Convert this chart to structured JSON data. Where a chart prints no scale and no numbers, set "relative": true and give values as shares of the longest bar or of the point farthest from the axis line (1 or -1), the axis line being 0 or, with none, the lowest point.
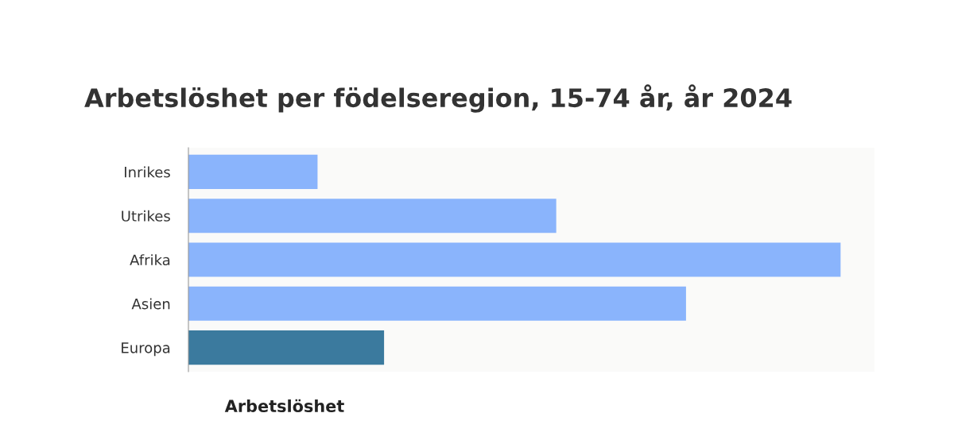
{
  "chart_data": {
    "type": "bar",
    "orientation": "horizontal",
    "relative": true,
    "title": "Arbetslöshet per födelseregion, 15-74 år, år 2024",
    "categories": [
      "Inrikes",
      "Utrikes",
      "Afrika",
      "Asien",
      "Europa"
    ],
    "values": [
      0.198,
      0.564,
      1,
      0.763,
      0.3
    ],
    "colors": [
      "#8ab4fc",
      "#8ab4fc",
      "#8ab4fc",
      "#8ab4fc",
      "#3b7a9e"
    ],
    "annotations": [
      "Arbetslöshet"
    ]
  }
}
